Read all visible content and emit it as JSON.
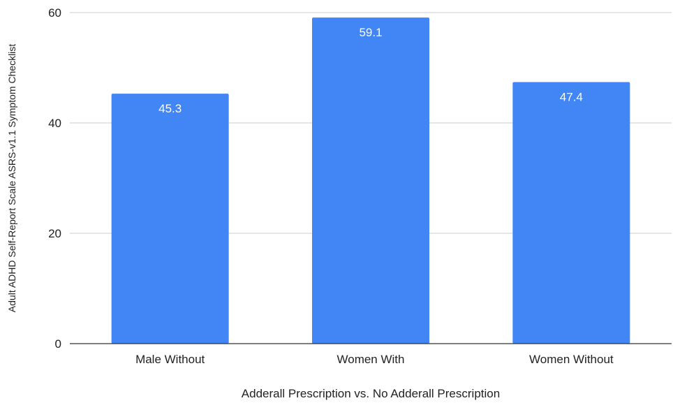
{
  "chart_data": {
    "type": "bar",
    "title": "",
    "xlabel": "Adderall Prescription vs. No Adderall Prescription",
    "ylabel": "Adult ADHD Self-Report Scale ASRS-v1.1 Symptom Checklist",
    "categories": [
      "Male Without",
      "Women With",
      "Women Without"
    ],
    "values": [
      45.3,
      59.1,
      47.4
    ],
    "data_labels": [
      "45.3",
      "59.1",
      "47.4"
    ],
    "ylim": [
      0,
      60
    ],
    "yticks": [
      0,
      20,
      40,
      60
    ],
    "grid": true,
    "legend": "none",
    "colors": {
      "bar": "#4285f4",
      "gridline": "#cccccc",
      "baseline": "#333333"
    }
  }
}
